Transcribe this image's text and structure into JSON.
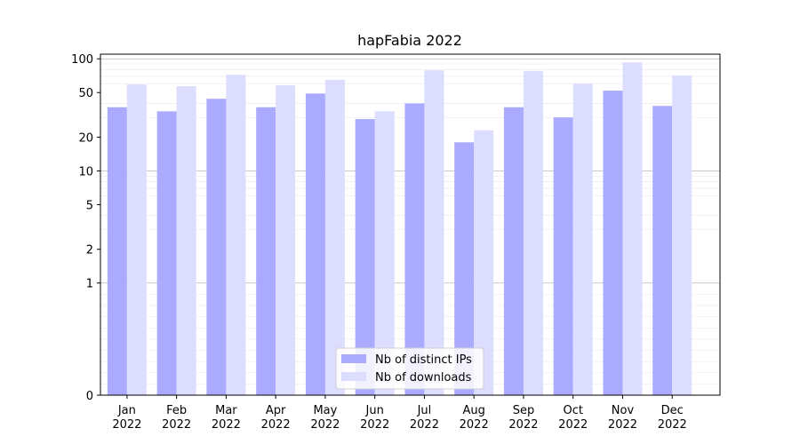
{
  "chart_data": {
    "type": "bar",
    "title": "hapFabia 2022",
    "xlabel": "",
    "ylabel": "",
    "yscale": "symlog",
    "ylim": [
      0,
      110
    ],
    "yticks": [
      0,
      1,
      2,
      5,
      10,
      20,
      50,
      100
    ],
    "grid": true,
    "legend_position": "bottom-center",
    "categories": [
      "Jan\n2022",
      "Feb\n2022",
      "Mar\n2022",
      "Apr\n2022",
      "May\n2022",
      "Jun\n2022",
      "Jul\n2022",
      "Aug\n2022",
      "Sep\n2022",
      "Oct\n2022",
      "Nov\n2022",
      "Dec\n2022"
    ],
    "series": [
      {
        "name": "Nb of distinct IPs",
        "color": "#aaaaff",
        "values": [
          37,
          34,
          44,
          37,
          49,
          29,
          40,
          18,
          37,
          30,
          52,
          38
        ]
      },
      {
        "name": "Nb of downloads",
        "color": "#ddddff",
        "values": [
          59,
          57,
          72,
          58,
          65,
          34,
          79,
          23,
          78,
          60,
          93,
          71
        ]
      }
    ]
  }
}
